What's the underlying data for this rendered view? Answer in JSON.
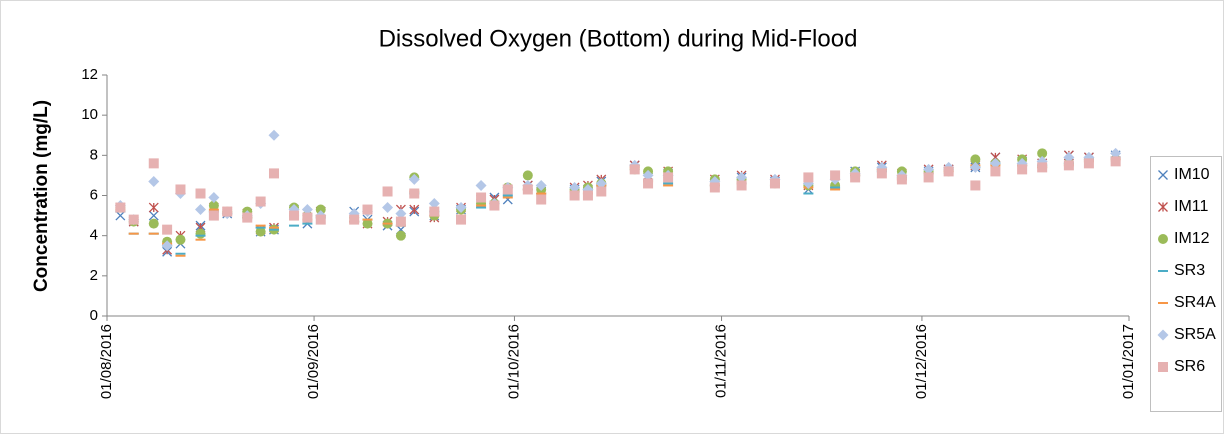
{
  "chart_data": {
    "type": "scatter",
    "title": "Dissolved Oxygen (Bottom) during Mid-Flood",
    "y_label": "Concentration (mg/L)",
    "x": [
      "2016-08-03",
      "2016-08-05",
      "2016-08-08",
      "2016-08-10",
      "2016-08-12",
      "2016-08-15",
      "2016-08-17",
      "2016-08-19",
      "2016-08-22",
      "2016-08-24",
      "2016-08-26",
      "2016-08-29",
      "2016-08-31",
      "2016-09-02",
      "2016-09-07",
      "2016-09-09",
      "2016-09-12",
      "2016-09-14",
      "2016-09-16",
      "2016-09-19",
      "2016-09-23",
      "2016-09-26",
      "2016-09-28",
      "2016-09-30",
      "2016-10-03",
      "2016-10-05",
      "2016-10-10",
      "2016-10-12",
      "2016-10-14",
      "2016-10-19",
      "2016-10-21",
      "2016-10-24",
      "2016-10-31",
      "2016-11-04",
      "2016-11-09",
      "2016-11-14",
      "2016-11-18",
      "2016-11-21",
      "2016-11-25",
      "2016-11-28",
      "2016-12-02",
      "2016-12-05",
      "2016-12-09",
      "2016-12-12",
      "2016-12-16",
      "2016-12-19",
      "2016-12-23",
      "2016-12-26",
      "2016-12-30"
    ],
    "series": [
      {
        "name": "IM10",
        "color": "#4f81bd",
        "marker": "x",
        "values": [
          5.0,
          4.7,
          5.0,
          3.2,
          3.6,
          4.5,
          5.7,
          5.1,
          5.0,
          4.2,
          4.3,
          5.3,
          4.6,
          5.2,
          5.2,
          4.8,
          4.5,
          4.3,
          5.2,
          5.0,
          5.3,
          5.8,
          5.9,
          5.8,
          6.5,
          6.2,
          6.3,
          6.3,
          6.7,
          7.5,
          6.9,
          7.1,
          6.6,
          6.9,
          6.7,
          6.3,
          6.6,
          7.2,
          7.4,
          7.0,
          7.2,
          7.3,
          7.4,
          7.9,
          7.7,
          7.6,
          8.0,
          7.9,
          8.0
        ]
      },
      {
        "name": "IM11",
        "color": "#c0504d",
        "marker": "star",
        "values": [
          5.4,
          4.7,
          5.4,
          3.3,
          4.0,
          4.4,
          5.4,
          5.2,
          5.1,
          4.3,
          4.4,
          5.2,
          4.9,
          5.2,
          4.9,
          4.6,
          4.7,
          5.3,
          5.3,
          4.9,
          5.4,
          5.6,
          5.8,
          6.3,
          6.5,
          6.3,
          6.4,
          6.5,
          6.8,
          7.5,
          7.0,
          7.2,
          6.8,
          7.0,
          6.8,
          6.5,
          6.6,
          7.1,
          7.5,
          7.1,
          7.3,
          7.3,
          7.5,
          7.9,
          7.8,
          7.6,
          8.0,
          7.9,
          7.9
        ]
      },
      {
        "name": "IM12",
        "color": "#9bbb59",
        "marker": "circle",
        "values": [
          5.4,
          4.7,
          4.6,
          3.7,
          3.8,
          4.1,
          5.5,
          5.2,
          5.2,
          4.2,
          4.3,
          5.4,
          5.0,
          5.3,
          4.9,
          4.6,
          4.6,
          4.0,
          6.9,
          5.0,
          5.3,
          5.6,
          5.6,
          6.4,
          7.0,
          6.3,
          6.3,
          6.4,
          6.6,
          7.3,
          7.2,
          7.2,
          6.8,
          6.8,
          6.6,
          6.5,
          6.5,
          7.2,
          7.3,
          7.2,
          7.2,
          7.2,
          7.8,
          7.6,
          7.8,
          8.1,
          7.6,
          7.8,
          7.8
        ]
      },
      {
        "name": "SR3",
        "color": "#4bacc6",
        "marker": "dash",
        "values": [
          5.2,
          4.1,
          4.1,
          3.5,
          3.1,
          4.0,
          5.2,
          5.1,
          4.9,
          4.4,
          4.3,
          4.5,
          4.6,
          4.9,
          4.7,
          4.8,
          4.6,
          4.5,
          6.1,
          5.2,
          5.4,
          5.4,
          5.6,
          6.0,
          6.3,
          6.1,
          6.2,
          6.3,
          6.5,
          7.5,
          6.8,
          6.6,
          6.5,
          6.6,
          6.5,
          6.1,
          6.4,
          7.0,
          7.2,
          6.9,
          7.1,
          7.3,
          7.4,
          7.6,
          7.5,
          7.5,
          7.6,
          7.8,
          7.9
        ]
      },
      {
        "name": "SR4A",
        "color": "#f79646",
        "marker": "dash",
        "values": [
          5.3,
          4.1,
          4.1,
          3.6,
          3.0,
          3.8,
          5.3,
          5.1,
          4.9,
          4.5,
          4.4,
          5.0,
          4.8,
          5.0,
          4.7,
          4.8,
          4.6,
          4.5,
          6.2,
          5.0,
          5.0,
          5.5,
          5.6,
          5.9,
          6.3,
          6.1,
          6.2,
          6.1,
          6.5,
          7.4,
          6.7,
          6.5,
          6.5,
          6.6,
          6.5,
          6.4,
          6.3,
          7.0,
          7.3,
          6.8,
          7.1,
          7.2,
          7.5,
          7.5,
          7.5,
          7.4,
          7.5,
          7.7,
          7.8
        ]
      },
      {
        "name": "SR5A",
        "color": "#b4c7e7",
        "marker": "diamond",
        "values": [
          5.5,
          4.8,
          6.7,
          3.5,
          6.1,
          5.3,
          5.9,
          5.1,
          5.0,
          5.6,
          9.0,
          5.3,
          5.3,
          5.0,
          5.1,
          5.2,
          5.4,
          5.1,
          6.8,
          5.6,
          5.4,
          6.5,
          5.6,
          6.4,
          6.5,
          6.5,
          6.4,
          6.3,
          6.6,
          7.5,
          7.0,
          7.0,
          6.7,
          6.9,
          6.8,
          6.6,
          6.8,
          7.1,
          7.4,
          7.0,
          7.3,
          7.4,
          7.4,
          7.6,
          7.6,
          7.7,
          7.9,
          7.9,
          8.1
        ]
      },
      {
        "name": "SR6",
        "color": "#e6b1b1",
        "marker": "square",
        "values": [
          5.4,
          4.8,
          7.6,
          4.3,
          6.3,
          6.1,
          5.0,
          5.2,
          4.9,
          5.7,
          7.1,
          5.0,
          4.9,
          4.8,
          4.8,
          5.3,
          6.2,
          4.7,
          6.1,
          5.2,
          4.8,
          5.9,
          5.5,
          6.3,
          6.3,
          5.8,
          6.0,
          6.0,
          6.2,
          7.3,
          6.6,
          6.9,
          6.4,
          6.5,
          6.6,
          6.9,
          7.0,
          6.9,
          7.1,
          6.8,
          6.9,
          7.2,
          6.5,
          7.2,
          7.3,
          7.4,
          7.5,
          7.6,
          7.7
        ]
      }
    ],
    "xlim": [
      "2016-08-01",
      "2017-01-01"
    ],
    "xticks": [
      {
        "value": "2016-08-01",
        "label": "01/08/2016"
      },
      {
        "value": "2016-09-01",
        "label": "01/09/2016"
      },
      {
        "value": "2016-10-01",
        "label": "01/10/2016"
      },
      {
        "value": "2016-11-01",
        "label": "01/11/2016"
      },
      {
        "value": "2016-12-01",
        "label": "01/12/2016"
      },
      {
        "value": "2017-01-01",
        "label": "01/01/2017"
      }
    ],
    "ylim": [
      0,
      12
    ],
    "yticks": [
      0,
      2,
      4,
      6,
      8,
      10,
      12
    ],
    "legend": "right"
  }
}
